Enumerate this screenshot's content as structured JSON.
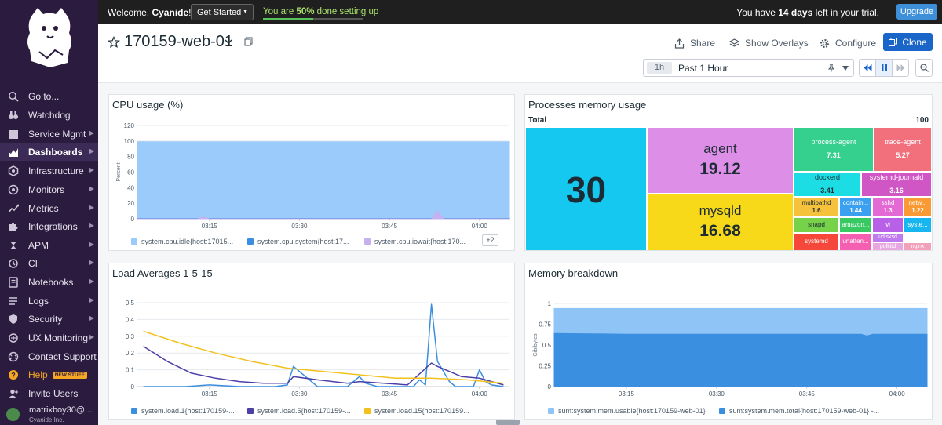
{
  "sidebar": {
    "items": [
      {
        "label": "Go to...",
        "icon": "search-icon",
        "arrow": false
      },
      {
        "label": "Watchdog",
        "icon": "binoculars-icon",
        "arrow": false
      },
      {
        "label": "Service Mgmt",
        "icon": "stack-icon",
        "arrow": true
      },
      {
        "label": "Dashboards",
        "icon": "dashboards-icon",
        "arrow": true
      },
      {
        "label": "Infrastructure",
        "icon": "hexagon-icon",
        "arrow": true
      },
      {
        "label": "Monitors",
        "icon": "monitor-icon",
        "arrow": true
      },
      {
        "label": "Metrics",
        "icon": "metrics-icon",
        "arrow": true
      },
      {
        "label": "Integrations",
        "icon": "puzzle-icon",
        "arrow": true
      },
      {
        "label": "APM",
        "icon": "apm-icon",
        "arrow": true
      },
      {
        "label": "CI",
        "icon": "ci-icon",
        "arrow": true
      },
      {
        "label": "Notebooks",
        "icon": "notebook-icon",
        "arrow": true
      },
      {
        "label": "Logs",
        "icon": "logs-icon",
        "arrow": true
      },
      {
        "label": "Security",
        "icon": "shield-icon",
        "arrow": true
      },
      {
        "label": "UX Monitoring",
        "icon": "ux-icon",
        "arrow": true
      },
      {
        "label": "Contact Support",
        "icon": "support-icon",
        "arrow": false
      },
      {
        "label": "Help",
        "icon": "help-icon",
        "arrow": false,
        "badge": "NEW STUFF"
      },
      {
        "label": "Invite Users",
        "icon": "invite-icon",
        "arrow": false
      }
    ],
    "active": "Dashboards",
    "user_name": "matrixboy30@...",
    "user_org": "Cyanide Inc."
  },
  "topbar": {
    "welcome_prefix": "Welcome, ",
    "welcome_name": "Cyanide",
    "welcome_suffix": "!",
    "get_started": "Get Started",
    "progress_prefix": "You are ",
    "progress_value": "50%",
    "progress_suffix": " done setting up",
    "progress_fraction": 0.5,
    "trial_prefix": "You have ",
    "trial_days": "14 days",
    "trial_suffix": " left in your trial.",
    "upgrade": "Upgrade"
  },
  "header": {
    "title": "170159-web-01",
    "share": "Share",
    "overlays": "Show Overlays",
    "configure": "Configure",
    "clone": "Clone",
    "time_pill": "1h",
    "time_label": "Past 1 Hour"
  },
  "widgets": {
    "cpu": {
      "title": "CPU usage (%)",
      "more": "+2",
      "legend": [
        "system.cpu.idle{host:17015...",
        "system.cpu.system{host:17...",
        "system.cpu.iowait{host:170..."
      ]
    },
    "procmem": {
      "title": "Processes memory usage",
      "total_label": "Total",
      "total_value": "100"
    },
    "load": {
      "title": "Load Averages 1-5-15",
      "legend": [
        "system.load.1{host:170159-...",
        "system.load.5{host:170159-...",
        "system.load.15{host:170159..."
      ]
    },
    "membreak": {
      "title": "Memory breakdown",
      "legend": [
        "sum:system.mem.usable{host:170159-web-01}",
        "sum:system.mem.total{host:170159-web-01} -..."
      ]
    }
  },
  "chart_data": [
    {
      "type": "area",
      "title": "CPU usage (%)",
      "ylabel": "Percent",
      "ylim": [
        0,
        120
      ],
      "yticks": [
        "0",
        "20",
        "40",
        "60",
        "80",
        "100",
        "120"
      ],
      "xticks": [
        "03:15",
        "03:30",
        "03:45",
        "04:00"
      ],
      "series": [
        {
          "name": "system.cpu.idle{host:17015...",
          "color": "#9bcbfa",
          "x": [
            "03:03",
            "03:15",
            "03:30",
            "03:45",
            "04:00",
            "04:05"
          ],
          "values": [
            99,
            99,
            99,
            99,
            99,
            99
          ]
        },
        {
          "name": "system.cpu.system{host:17...",
          "color": "#3b8fe0",
          "x": [
            "03:03",
            "03:15",
            "03:30",
            "03:45",
            "04:00",
            "04:05"
          ],
          "values": [
            0.5,
            0.5,
            0.5,
            0.5,
            0.5,
            0.5
          ]
        },
        {
          "name": "system.cpu.iowait{host:170...",
          "color": "#c5b0f0",
          "x": [
            "03:03",
            "03:13",
            "03:14",
            "03:15",
            "03:52",
            "03:53",
            "03:54",
            "04:05"
          ],
          "values": [
            0,
            0,
            2,
            0,
            0,
            10,
            0,
            0
          ]
        }
      ]
    },
    {
      "type": "heatmap",
      "title": "Processes memory usage",
      "total": 100,
      "items": [
        {
          "name": "",
          "value": 30,
          "color": "#14c8f0"
        },
        {
          "name": "agent",
          "value": 19.12,
          "color": "#dd8fe8"
        },
        {
          "name": "mysqld",
          "value": 16.68,
          "color": "#f7d919"
        },
        {
          "name": "process-agent",
          "value": 7.31,
          "color": "#35cf8e"
        },
        {
          "name": "trace-agent",
          "value": 5.27,
          "color": "#f1707c"
        },
        {
          "name": "dockerd",
          "value": 3.41,
          "color": "#1cdde3"
        },
        {
          "name": "systemd-journald",
          "value": 3.16,
          "color": "#d055c5"
        },
        {
          "name": "multipathd",
          "value": 1.6,
          "color": "#f7c23b"
        },
        {
          "name": "contain...",
          "value": 1.44,
          "color": "#3ba0f0"
        },
        {
          "name": "sshd",
          "value": 1.3,
          "color": "#e36ad5"
        },
        {
          "name": "netw...",
          "value": 1.22,
          "color": "#f99a35"
        },
        {
          "name": "snapd",
          "value": 1.1,
          "color": "#76d248"
        },
        {
          "name": "amazon...",
          "value": 1,
          "color": "#38c962"
        },
        {
          "name": "vi",
          "value": 0.9,
          "color": "#b860e8"
        },
        {
          "name": "syste...",
          "value": 0.9,
          "color": "#18b6f0"
        },
        {
          "name": "systemd",
          "value": 1,
          "color": "#f6483a"
        },
        {
          "name": "unatten...",
          "value": 0.9,
          "color": "#f55fb1"
        },
        {
          "name": "udisksd",
          "value": 0.6,
          "color": "#c07af0"
        },
        {
          "name": "polkitd",
          "value": 0.6,
          "color": "#e8a7e0"
        },
        {
          "name": "nginx",
          "value": 0.6,
          "color": "#f3a1bb"
        }
      ]
    },
    {
      "type": "line",
      "title": "Load Averages 1-5-15",
      "ylim": [
        0,
        0.5
      ],
      "yticks": [
        "0",
        "0.1",
        "0.2",
        "0.3",
        "0.4",
        "0.5"
      ],
      "xticks": [
        "03:15",
        "03:30",
        "03:45",
        "04:00"
      ],
      "series": [
        {
          "name": "system.load.1{host:170159-...",
          "color": "#3b8fe0",
          "x": [
            "03:04",
            "03:07",
            "03:11",
            "03:15",
            "03:20",
            "03:26",
            "03:28",
            "03:29",
            "03:31",
            "03:33",
            "03:38",
            "03:40",
            "03:41",
            "03:43",
            "03:49",
            "03:50",
            "03:51",
            "03:52",
            "03:53",
            "03:55",
            "03:56",
            "03:59",
            "04:00",
            "04:01",
            "04:02",
            "04:04"
          ],
          "values": [
            0,
            0,
            0,
            0.01,
            0,
            0,
            0.01,
            0.12,
            0.06,
            0,
            0,
            0.06,
            0.02,
            0,
            0,
            0.04,
            0.01,
            0.49,
            0.15,
            0.03,
            0,
            0,
            0.1,
            0.03,
            0.01,
            0
          ]
        },
        {
          "name": "system.load.5{host:170159-...",
          "color": "#4b3fa8",
          "x": [
            "03:04",
            "03:08",
            "03:12",
            "03:16",
            "03:20",
            "03:24",
            "03:28",
            "03:29",
            "03:33",
            "03:38",
            "03:40",
            "03:44",
            "03:48",
            "03:52",
            "03:53",
            "03:57",
            "04:00",
            "04:01",
            "04:04"
          ],
          "values": [
            0.24,
            0.15,
            0.08,
            0.05,
            0.03,
            0.02,
            0.02,
            0.06,
            0.04,
            0.02,
            0.03,
            0.02,
            0.01,
            0.14,
            0.12,
            0.06,
            0.05,
            0.04,
            0.01
          ]
        },
        {
          "name": "system.load.15{host:170159...",
          "color": "#f2c11d",
          "x": [
            "03:04",
            "03:10",
            "03:16",
            "03:22",
            "03:28",
            "03:34",
            "03:40",
            "03:46",
            "03:52",
            "03:58",
            "04:04"
          ],
          "values": [
            0.33,
            0.26,
            0.2,
            0.15,
            0.11,
            0.09,
            0.07,
            0.05,
            0.05,
            0.04,
            0.02
          ]
        }
      ]
    },
    {
      "type": "area",
      "title": "Memory breakdown",
      "ylabel": "Gibibytes",
      "ylim": [
        0,
        1
      ],
      "yticks": [
        "0",
        "0.25",
        "0.5",
        "0.75",
        "1"
      ],
      "xticks": [
        "03:15",
        "03:30",
        "03:45",
        "04:00"
      ],
      "series": [
        {
          "name": "sum:system.mem.usable{host:170159-web-01}",
          "color": "#8fc4f7",
          "x": [
            "03:03",
            "04:05"
          ],
          "values": [
            0.94,
            0.94
          ]
        },
        {
          "name": "sum:system.mem.total{host:170159-web-01} -...",
          "color": "#3b8fe0",
          "x": [
            "03:03",
            "03:15",
            "03:30",
            "03:45",
            "03:54",
            "03:55",
            "03:56",
            "04:05"
          ],
          "values": [
            0.64,
            0.63,
            0.63,
            0.63,
            0.63,
            0.61,
            0.63,
            0.63
          ]
        }
      ]
    }
  ]
}
